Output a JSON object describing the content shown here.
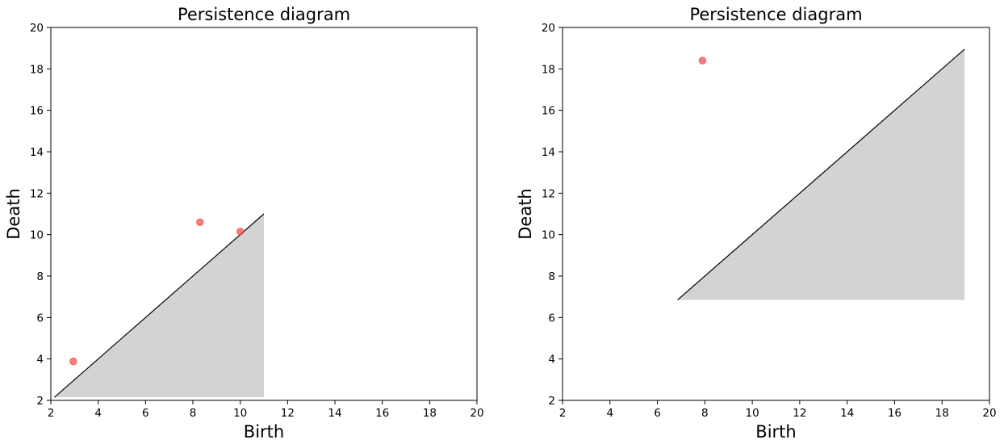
{
  "chart_data": [
    {
      "type": "scatter",
      "title": "Persistence diagram",
      "xlabel": "Birth",
      "ylabel": "Death",
      "xlim": [
        2,
        20
      ],
      "ylim": [
        2,
        20
      ],
      "xticks": [
        2,
        4,
        6,
        8,
        10,
        12,
        14,
        16,
        18,
        20
      ],
      "yticks": [
        2,
        4,
        6,
        8,
        10,
        12,
        14,
        16,
        18,
        20
      ],
      "grid": false,
      "point_color": "#f05252",
      "points": [
        {
          "x": 2.95,
          "y": 3.88
        },
        {
          "x": 8.3,
          "y": 10.6
        },
        {
          "x": 10.0,
          "y": 10.15
        }
      ],
      "diagonal": {
        "from": 2.15,
        "to": 11.0
      },
      "shaded_region": {
        "x_from": 2.15,
        "x_to": 11.0,
        "y_floor": 2.15,
        "color": "#d3d3d3"
      }
    },
    {
      "type": "scatter",
      "title": "Persistence diagram",
      "xlabel": "Birth",
      "ylabel": "Death",
      "xlim": [
        2,
        20
      ],
      "ylim": [
        2,
        20
      ],
      "xticks": [
        2,
        4,
        6,
        8,
        10,
        12,
        14,
        16,
        18,
        20
      ],
      "yticks": [
        2,
        4,
        6,
        8,
        10,
        12,
        14,
        16,
        18,
        20
      ],
      "grid": false,
      "point_color": "#f05252",
      "points": [
        {
          "x": 7.9,
          "y": 18.4
        }
      ],
      "diagonal": {
        "from": 6.85,
        "to": 18.95
      },
      "shaded_region": {
        "x_from": 6.85,
        "x_to": 18.95,
        "y_floor": 6.85,
        "color": "#d3d3d3"
      }
    }
  ]
}
